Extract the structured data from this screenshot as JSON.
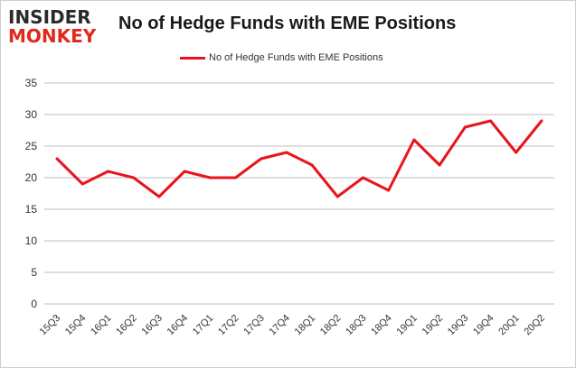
{
  "logo": {
    "line1": "INSIDER",
    "line2": "MONKEY"
  },
  "chart_data": {
    "type": "line",
    "title": "No of Hedge Funds with EME Positions",
    "xlabel": "",
    "ylabel": "",
    "categories": [
      "15Q3",
      "15Q4",
      "16Q1",
      "16Q2",
      "16Q3",
      "16Q4",
      "17Q1",
      "17Q2",
      "17Q3",
      "17Q4",
      "18Q1",
      "18Q2",
      "18Q3",
      "18Q4",
      "19Q1",
      "19Q2",
      "19Q3",
      "19Q4",
      "20Q1",
      "20Q2"
    ],
    "series": [
      {
        "name": "No of Hedge Funds with EME  Positions",
        "values": [
          23,
          19,
          21,
          20,
          17,
          21,
          20,
          20,
          23,
          24,
          22,
          17,
          20,
          18,
          26,
          22,
          28,
          29,
          24,
          29
        ],
        "color": "#e8141b"
      }
    ],
    "ylim": [
      0,
      35
    ],
    "yticks": [
      0,
      5,
      10,
      15,
      20,
      25,
      30,
      35
    ],
    "grid": true,
    "legend_position": "top-center",
    "colors": {
      "line": "#e8141b",
      "grid": "#bdbdbd",
      "axis_text": "#333333"
    }
  }
}
